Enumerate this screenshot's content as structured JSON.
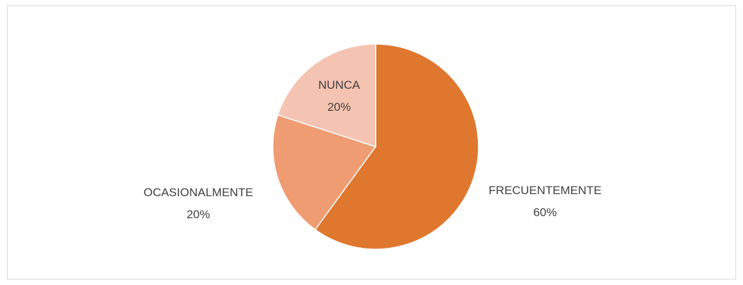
{
  "chart_data": {
    "type": "pie",
    "categories": [
      "FRECUENTEMENTE",
      "OCASIONALMENTE",
      "NUNCA"
    ],
    "values": [
      60,
      20,
      20
    ],
    "value_labels": [
      "60%",
      "20%",
      "20%"
    ],
    "colors": [
      "#df772f",
      "#f09c72",
      "#f5c3b1"
    ]
  }
}
